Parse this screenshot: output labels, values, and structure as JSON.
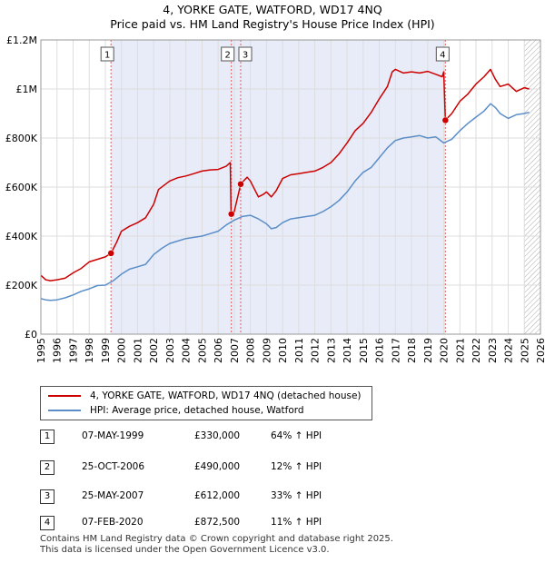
{
  "header": {
    "line1": "4, YORKE GATE, WATFORD, WD17 4NQ",
    "line2": "Price paid vs. HM Land Registry's House Price Index (HPI)"
  },
  "chart_data": {
    "type": "line",
    "xlim": [
      1995,
      2026
    ],
    "ylim": [
      0,
      1200000
    ],
    "x_ticks": [
      "1995",
      "1996",
      "1997",
      "1998",
      "1999",
      "2000",
      "2001",
      "2002",
      "2003",
      "2004",
      "2005",
      "2006",
      "2007",
      "2008",
      "2009",
      "2010",
      "2011",
      "2012",
      "2013",
      "2014",
      "2015",
      "2016",
      "2017",
      "2018",
      "2019",
      "2020",
      "2021",
      "2022",
      "2023",
      "2024",
      "2025",
      "2026"
    ],
    "y_ticks": [
      {
        "value": 0,
        "label": "£0"
      },
      {
        "value": 200000,
        "label": "£200K"
      },
      {
        "value": 400000,
        "label": "£400K"
      },
      {
        "value": 600000,
        "label": "£600K"
      },
      {
        "value": 800000,
        "label": "£800K"
      },
      {
        "value": 1000000,
        "label": "£1M"
      },
      {
        "value": 1200000,
        "label": "£1.2M"
      }
    ],
    "colors": {
      "price": "#cc0000",
      "hpi": "#5b8ec8",
      "shade": "#e8ecf8",
      "vline": "#e06060",
      "grid": "#dddddd"
    },
    "shaded_spans": [
      [
        1999.35,
        2020.1
      ]
    ],
    "hatch_from": 2025.0,
    "series": [
      {
        "name": "4, YORKE GATE, WATFORD, WD17 4NQ (detached house)",
        "x": [
          1995.0,
          1995.3,
          1995.6,
          1996.0,
          1996.5,
          1997.0,
          1997.5,
          1998.0,
          1998.5,
          1999.0,
          1999.35,
          1999.7,
          2000.0,
          2000.5,
          2001.0,
          2001.5,
          2002.0,
          2002.3,
          2002.7,
          2003.0,
          2003.5,
          2004.0,
          2004.5,
          2005.0,
          2005.5,
          2006.0,
          2006.5,
          2006.75,
          2006.8,
          2006.9,
          2007.0,
          2007.4,
          2007.5,
          2007.8,
          2008.0,
          2008.5,
          2008.8,
          2009.0,
          2009.3,
          2009.6,
          2010.0,
          2010.5,
          2011.0,
          2011.5,
          2012.0,
          2012.5,
          2013.0,
          2013.5,
          2014.0,
          2014.5,
          2015.0,
          2015.5,
          2016.0,
          2016.5,
          2016.8,
          2017.0,
          2017.5,
          2018.0,
          2018.5,
          2019.0,
          2019.5,
          2019.9,
          2020.0,
          2020.1,
          2020.5,
          2021.0,
          2021.5,
          2022.0,
          2022.5,
          2022.9,
          2023.2,
          2023.5,
          2024.0,
          2024.5,
          2025.0,
          2025.3
        ],
        "values": [
          240000,
          222000,
          218000,
          222000,
          228000,
          250000,
          268000,
          295000,
          305000,
          315000,
          330000,
          375000,
          420000,
          440000,
          455000,
          475000,
          530000,
          590000,
          610000,
          625000,
          638000,
          645000,
          655000,
          665000,
          670000,
          672000,
          685000,
          700000,
          490000,
          485000,
          500000,
          612000,
          620000,
          640000,
          625000,
          560000,
          570000,
          580000,
          560000,
          585000,
          635000,
          650000,
          655000,
          660000,
          665000,
          680000,
          700000,
          735000,
          780000,
          830000,
          860000,
          905000,
          960000,
          1010000,
          1070000,
          1080000,
          1065000,
          1070000,
          1065000,
          1072000,
          1060000,
          1050000,
          1070000,
          872500,
          900000,
          950000,
          980000,
          1020000,
          1050000,
          1080000,
          1040000,
          1010000,
          1020000,
          990000,
          1005000,
          1000000
        ]
      },
      {
        "name": "HPI: Average price, detached house, Watford",
        "x": [
          1995.0,
          1995.3,
          1995.6,
          1996.0,
          1996.5,
          1997.0,
          1997.5,
          1998.0,
          1998.5,
          1999.0,
          1999.5,
          2000.0,
          2000.5,
          2001.0,
          2001.5,
          2002.0,
          2002.5,
          2003.0,
          2003.5,
          2004.0,
          2004.5,
          2005.0,
          2005.5,
          2006.0,
          2006.5,
          2007.0,
          2007.5,
          2008.0,
          2008.5,
          2009.0,
          2009.3,
          2009.6,
          2010.0,
          2010.5,
          2011.0,
          2011.5,
          2012.0,
          2012.5,
          2013.0,
          2013.5,
          2014.0,
          2014.5,
          2015.0,
          2015.5,
          2016.0,
          2016.5,
          2017.0,
          2017.5,
          2018.0,
          2018.5,
          2019.0,
          2019.5,
          2020.0,
          2020.5,
          2021.0,
          2021.5,
          2022.0,
          2022.5,
          2022.9,
          2023.2,
          2023.5,
          2024.0,
          2024.5,
          2025.0,
          2025.3
        ],
        "values": [
          145000,
          140000,
          138000,
          140000,
          148000,
          160000,
          175000,
          185000,
          198000,
          200000,
          218000,
          245000,
          265000,
          275000,
          285000,
          325000,
          350000,
          370000,
          380000,
          390000,
          395000,
          400000,
          410000,
          420000,
          445000,
          465000,
          480000,
          485000,
          470000,
          450000,
          430000,
          435000,
          455000,
          470000,
          475000,
          480000,
          485000,
          500000,
          520000,
          545000,
          580000,
          625000,
          660000,
          680000,
          720000,
          760000,
          790000,
          800000,
          805000,
          810000,
          800000,
          805000,
          780000,
          795000,
          830000,
          860000,
          885000,
          910000,
          940000,
          925000,
          900000,
          880000,
          895000,
          900000,
          905000
        ]
      }
    ],
    "sales": [
      {
        "id": "1",
        "x": 1999.35,
        "value": 330000
      },
      {
        "id": "2",
        "x": 2006.82,
        "value": 490000
      },
      {
        "id": "3",
        "x": 2007.4,
        "value": 612000
      },
      {
        "id": "4",
        "x": 2020.1,
        "value": 872500
      }
    ]
  },
  "legend": {
    "price_label": "4, YORKE GATE, WATFORD, WD17 4NQ (detached house)",
    "hpi_label": "HPI: Average price, detached house, Watford"
  },
  "table": [
    {
      "num": "1",
      "date": "07-MAY-1999",
      "price": "£330,000",
      "hpi": "64% ↑ HPI"
    },
    {
      "num": "2",
      "date": "25-OCT-2006",
      "price": "£490,000",
      "hpi": "12% ↑ HPI"
    },
    {
      "num": "3",
      "date": "25-MAY-2007",
      "price": "£612,000",
      "hpi": "33% ↑ HPI"
    },
    {
      "num": "4",
      "date": "07-FEB-2020",
      "price": "£872,500",
      "hpi": "11% ↑ HPI"
    }
  ],
  "footer": {
    "line1": "Contains HM Land Registry data © Crown copyright and database right 2025.",
    "line2": "This data is licensed under the Open Government Licence v3.0."
  }
}
